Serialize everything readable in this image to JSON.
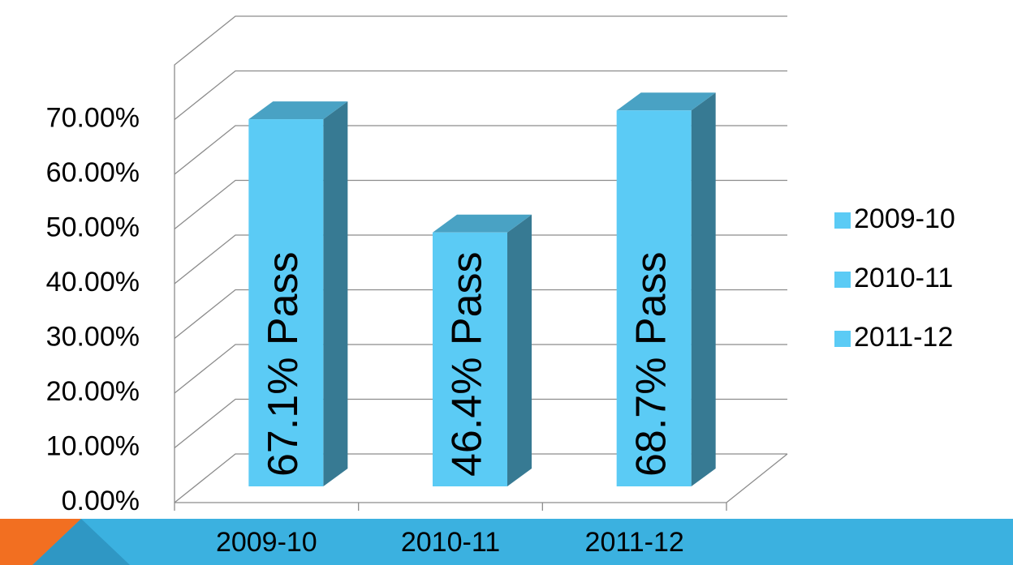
{
  "chart_data": {
    "type": "bar3d",
    "categories": [
      "2009-10",
      "2010-11",
      "2011-12"
    ],
    "series": [
      {
        "name": "2009-10",
        "color": "#5bcbf5",
        "values": [
          67.1,
          null,
          null
        ],
        "value_labels": [
          "67.1% Pass",
          null,
          null
        ]
      },
      {
        "name": "2010-11",
        "color": "#5bcbf5",
        "values": [
          null,
          46.4,
          null
        ],
        "value_labels": [
          null,
          "46.4% Pass",
          null
        ]
      },
      {
        "name": "2011-12",
        "color": "#5bcbf5",
        "values": [
          null,
          null,
          68.7
        ],
        "value_labels": [
          null,
          null,
          "68.7% Pass"
        ]
      }
    ],
    "ylim": [
      0,
      80
    ],
    "yticks": [
      {
        "value": 0,
        "label": "0.00%"
      },
      {
        "value": 10,
        "label": "10.00%"
      },
      {
        "value": 20,
        "label": "20.00%"
      },
      {
        "value": 30,
        "label": "30.00%"
      },
      {
        "value": 40,
        "label": "40.00%"
      },
      {
        "value": 50,
        "label": "50.00%"
      },
      {
        "value": 60,
        "label": "60.00%"
      },
      {
        "value": 70,
        "label": "70.00%"
      }
    ],
    "grid": true,
    "legend": "right"
  }
}
